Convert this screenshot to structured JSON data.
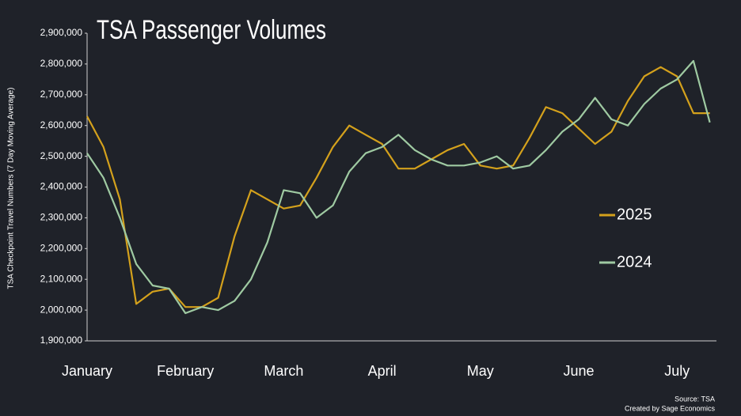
{
  "chart_data": {
    "type": "line",
    "title": "TSA Passenger Volumes",
    "y_label": "TSA Checkpoint Travel Numbers (7 Day Moving Average)",
    "categories": [
      "January",
      null,
      null,
      null,
      null,
      null,
      "February",
      null,
      null,
      null,
      null,
      null,
      "March",
      null,
      null,
      null,
      null,
      null,
      "April",
      null,
      null,
      null,
      null,
      null,
      "May",
      null,
      null,
      null,
      null,
      null,
      "June",
      null,
      null,
      null,
      null,
      null,
      "July",
      null,
      null
    ],
    "series": [
      {
        "name": "2025",
        "color": "#d4a11c",
        "values": [
          2630000,
          2530000,
          2360000,
          2020000,
          2060000,
          2070000,
          2010000,
          2010000,
          2040000,
          2240000,
          2390000,
          2360000,
          2330000,
          2340000,
          2430000,
          2530000,
          2600000,
          2570000,
          2540000,
          2460000,
          2460000,
          2490000,
          2520000,
          2540000,
          2470000,
          2460000,
          2470000,
          2560000,
          2660000,
          2640000,
          2590000,
          2540000,
          2580000,
          2680000,
          2760000,
          2790000,
          2760000,
          2640000,
          2640000
        ]
      },
      {
        "name": "2024",
        "color": "#9fcaa2",
        "values": [
          2510000,
          2430000,
          2300000,
          2150000,
          2080000,
          2070000,
          1990000,
          2010000,
          2000000,
          2030000,
          2100000,
          2220000,
          2390000,
          2380000,
          2300000,
          2340000,
          2450000,
          2510000,
          2530000,
          2570000,
          2520000,
          2490000,
          2470000,
          2470000,
          2480000,
          2500000,
          2460000,
          2470000,
          2520000,
          2580000,
          2620000,
          2690000,
          2620000,
          2600000,
          2670000,
          2720000,
          2750000,
          2810000,
          2610000
        ]
      }
    ],
    "ylim": [
      1900000,
      2900000
    ],
    "yticks": [
      {
        "value": 1900000,
        "label": "1,900,000"
      },
      {
        "value": 2000000,
        "label": "2,000,000"
      },
      {
        "value": 2100000,
        "label": "2,100,000"
      },
      {
        "value": 2200000,
        "label": "2,200,000"
      },
      {
        "value": 2300000,
        "label": "2,300,000"
      },
      {
        "value": 2400000,
        "label": "2,400,000"
      },
      {
        "value": 2500000,
        "label": "2,500,000"
      },
      {
        "value": 2600000,
        "label": "2,600,000"
      },
      {
        "value": 2700000,
        "label": "2,700,000"
      },
      {
        "value": 2800000,
        "label": "2,800,000"
      },
      {
        "value": 2900000,
        "label": "2,900,000"
      }
    ],
    "grid": false,
    "legend": "right",
    "notes": [
      "Source: TSA",
      "Created by Sage Economics"
    ]
  }
}
